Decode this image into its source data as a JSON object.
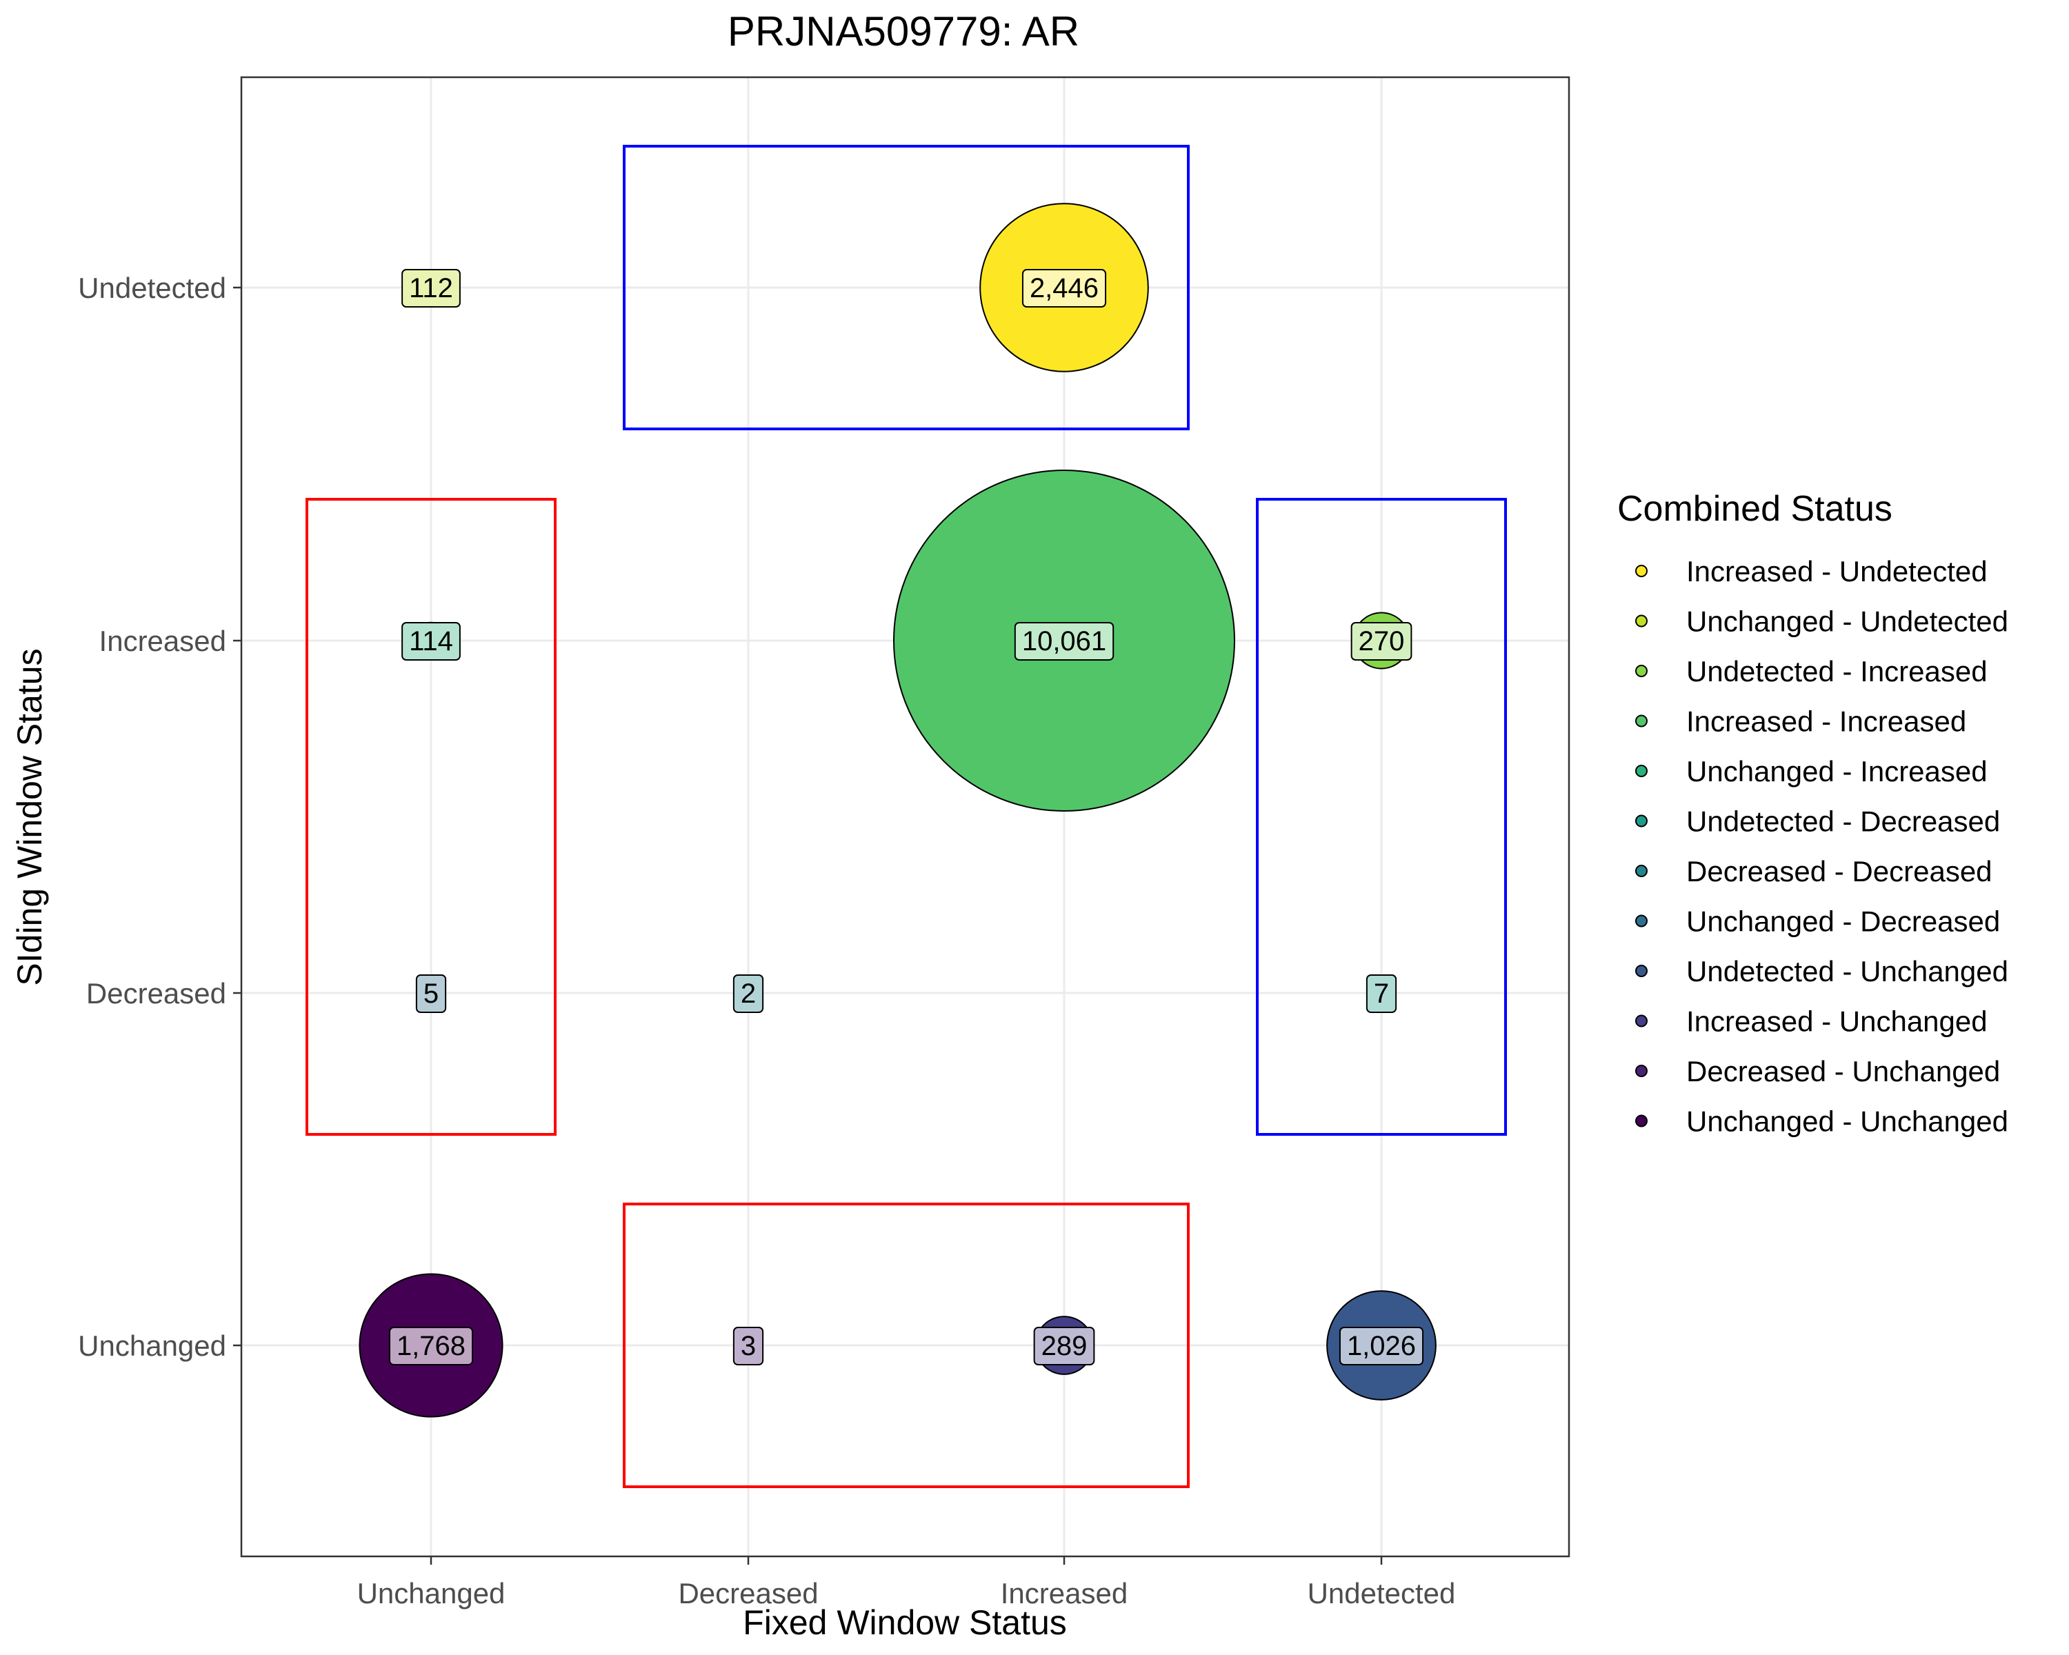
{
  "chart_data": {
    "type": "scatter",
    "title": "PRJNA509779: AR",
    "xlabel": "Fixed Window Status",
    "ylabel": "SIding Window Status",
    "x_categories": [
      "Unchanged",
      "Decreased",
      "Increased",
      "Undetected"
    ],
    "y_categories": [
      "Unchanged",
      "Decreased",
      "Increased",
      "Undetected"
    ],
    "grid": true,
    "legend": {
      "title": "Combined Status",
      "position": "right",
      "entries": [
        {
          "label": "Increased - Undetected",
          "color": "#FDE725"
        },
        {
          "label": "Unchanged - Undetected",
          "color": "#C2DF23"
        },
        {
          "label": "Undetected - Increased",
          "color": "#86D549"
        },
        {
          "label": "Increased - Increased",
          "color": "#52C569"
        },
        {
          "label": "Unchanged - Increased",
          "color": "#2AB07F"
        },
        {
          "label": "Undetected - Decreased",
          "color": "#1E9B8A"
        },
        {
          "label": "Decreased - Decreased",
          "color": "#25858E"
        },
        {
          "label": "Unchanged - Decreased",
          "color": "#2D708E"
        },
        {
          "label": "Undetected - Unchanged",
          "color": "#38588C"
        },
        {
          "label": "Increased - Unchanged",
          "color": "#433E85"
        },
        {
          "label": "Decreased - Unchanged",
          "color": "#482173"
        },
        {
          "label": "Unchanged - Unchanged",
          "color": "#440154"
        }
      ]
    },
    "points": [
      {
        "x": "Increased",
        "y": "Undetected",
        "value": 2446,
        "label": "2,446",
        "color": "#FDE725"
      },
      {
        "x": "Unchanged",
        "y": "Undetected",
        "value": 112,
        "label": "112",
        "color": "#C2DF23"
      },
      {
        "x": "Undetected",
        "y": "Increased",
        "value": 270,
        "label": "270",
        "color": "#86D549"
      },
      {
        "x": "Increased",
        "y": "Increased",
        "value": 10061,
        "label": "10,061",
        "color": "#52C569"
      },
      {
        "x": "Unchanged",
        "y": "Increased",
        "value": 114,
        "label": "114",
        "color": "#2AB07F"
      },
      {
        "x": "Undetected",
        "y": "Decreased",
        "value": 7,
        "label": "7",
        "color": "#1E9B8A"
      },
      {
        "x": "Decreased",
        "y": "Decreased",
        "value": 2,
        "label": "2",
        "color": "#25858E"
      },
      {
        "x": "Unchanged",
        "y": "Decreased",
        "value": 5,
        "label": "5",
        "color": "#2D708E"
      },
      {
        "x": "Undetected",
        "y": "Unchanged",
        "value": 1026,
        "label": "1,026",
        "color": "#38588C"
      },
      {
        "x": "Increased",
        "y": "Unchanged",
        "value": 289,
        "label": "289",
        "color": "#433E85"
      },
      {
        "x": "Decreased",
        "y": "Unchanged",
        "value": 3,
        "label": "3",
        "color": "#482173"
      },
      {
        "x": "Unchanged",
        "y": "Unchanged",
        "value": 1768,
        "label": "1,768",
        "color": "#440154"
      }
    ],
    "highlight_boxes": [
      {
        "color": "#0000FF",
        "x_from": "Decreased",
        "x_to": "Increased",
        "y_from": "Undetected",
        "y_to": "Undetected"
      },
      {
        "color": "#0000FF",
        "x_from": "Undetected",
        "x_to": "Undetected",
        "y_from": "Decreased",
        "y_to": "Increased"
      },
      {
        "color": "#FF0000",
        "x_from": "Unchanged",
        "x_to": "Unchanged",
        "y_from": "Decreased",
        "y_to": "Increased"
      },
      {
        "color": "#FF0000",
        "x_from": "Decreased",
        "x_to": "Increased",
        "y_from": "Unchanged",
        "y_to": "Unchanged"
      }
    ]
  }
}
